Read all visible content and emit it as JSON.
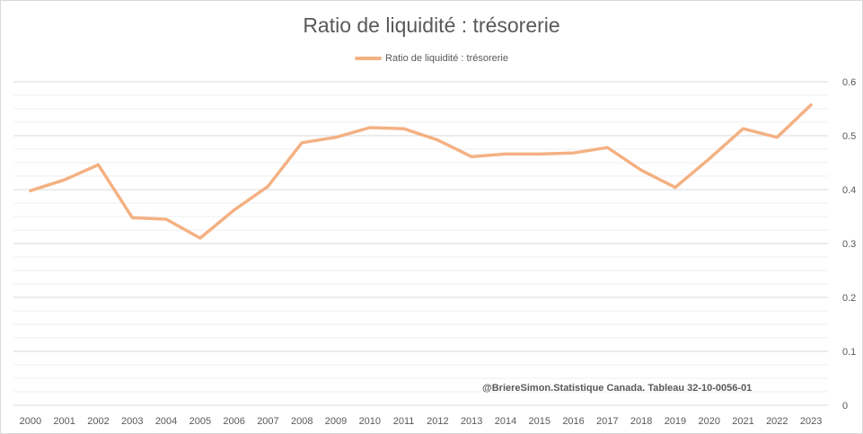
{
  "chart_data": {
    "type": "line",
    "title": "Ratio de liquidité : trésorerie",
    "xlabel": "",
    "ylabel": "",
    "x": [
      "2000",
      "2001",
      "2002",
      "2003",
      "2004",
      "2005",
      "2006",
      "2007",
      "2008",
      "2009",
      "2010",
      "2011",
      "2012",
      "2013",
      "2014",
      "2015",
      "2016",
      "2017",
      "2018",
      "2019",
      "2020",
      "2021",
      "2022",
      "2023"
    ],
    "series": [
      {
        "name": "Ratio de liquidité : trésorerie",
        "values": [
          0.398,
          0.418,
          0.446,
          0.348,
          0.345,
          0.31,
          0.362,
          0.406,
          0.487,
          0.497,
          0.515,
          0.513,
          0.492,
          0.461,
          0.466,
          0.466,
          0.468,
          0.478,
          0.436,
          0.404,
          0.457,
          0.513,
          0.497,
          0.557
        ],
        "color": "#f4b183"
      }
    ],
    "ylim": [
      0,
      0.6
    ],
    "yticks": [
      "0",
      "0.1",
      "0.2",
      "0.3",
      "0.4",
      "0.5",
      "0.6"
    ],
    "y_axis_position": "right",
    "grid": "horizontal major and minor",
    "legend": "top-center",
    "annotation": "@BriereSimon.Statistique Canada. Tableau 32-10-0056-01"
  },
  "colors": {
    "gridline_major": "#d9d9d9",
    "gridline_minor": "#efefef",
    "text": "#595959"
  }
}
